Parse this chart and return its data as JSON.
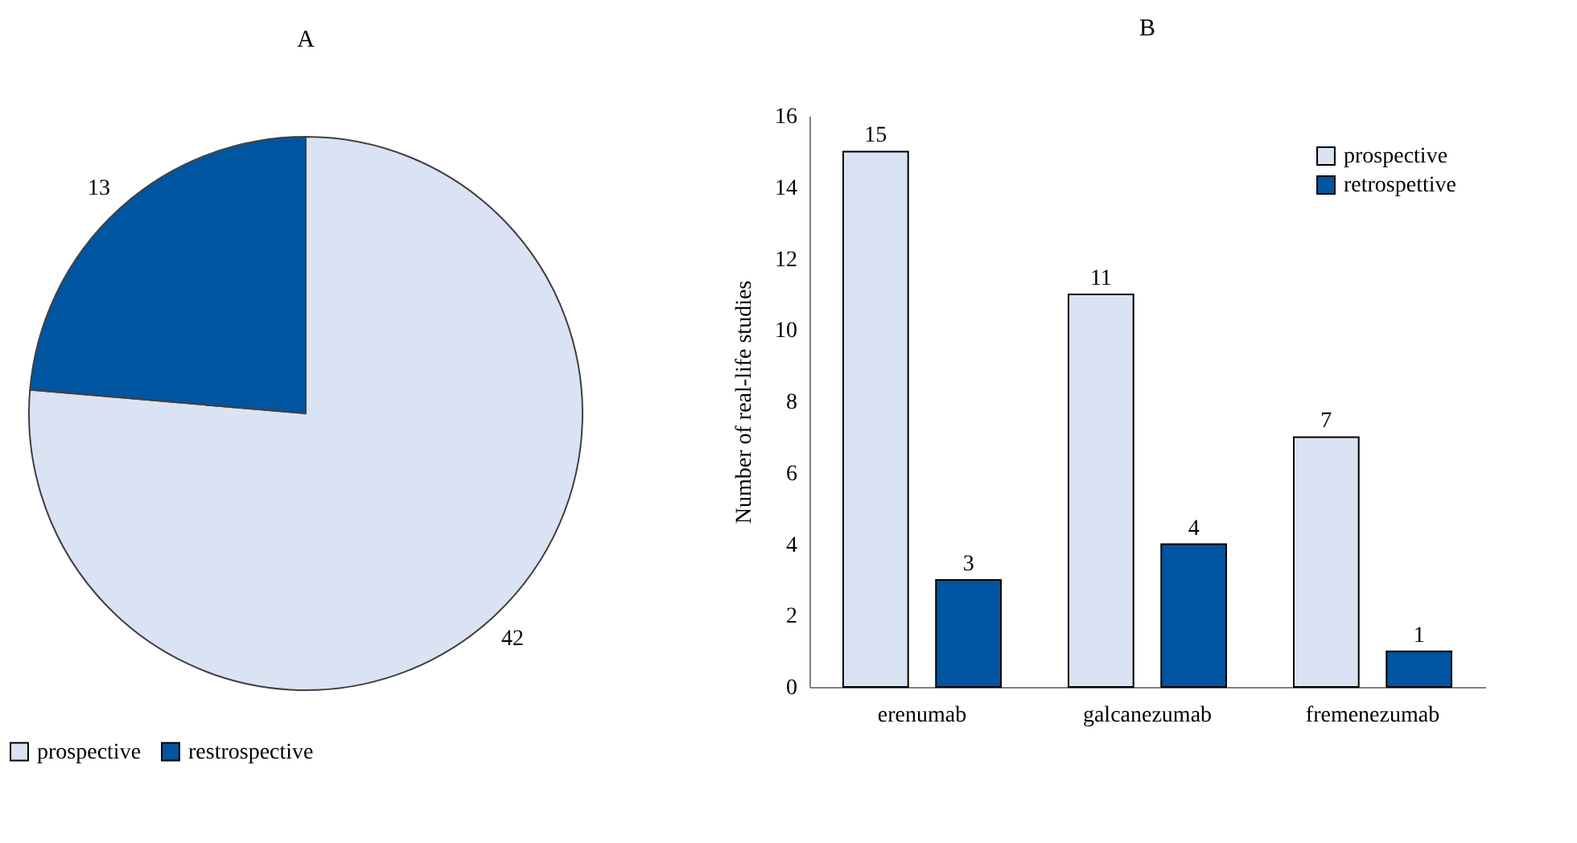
{
  "chart_data": [
    {
      "type": "pie",
      "title": "A",
      "categories": [
        "prospective",
        "restrospective"
      ],
      "values": [
        42,
        13
      ],
      "colors": [
        "#dae3f3",
        "#0055a0"
      ],
      "data_labels": true,
      "legend": "bottom"
    },
    {
      "type": "bar",
      "title": "B",
      "ylabel": "Number of real-life studies",
      "categories": [
        "erenumab",
        "galcanezumab",
        "fremenezumab"
      ],
      "series": [
        {
          "name": "prospective",
          "color": "#dae3f3",
          "values": [
            15,
            11,
            7
          ]
        },
        {
          "name": "retrospettive",
          "color": "#0055a0",
          "values": [
            3,
            4,
            1
          ]
        }
      ],
      "ylim": [
        0,
        16
      ],
      "yticks": [
        0,
        2,
        4,
        6,
        8,
        10,
        12,
        14,
        16
      ],
      "grid": false,
      "data_labels": true,
      "legend": "top right"
    }
  ]
}
